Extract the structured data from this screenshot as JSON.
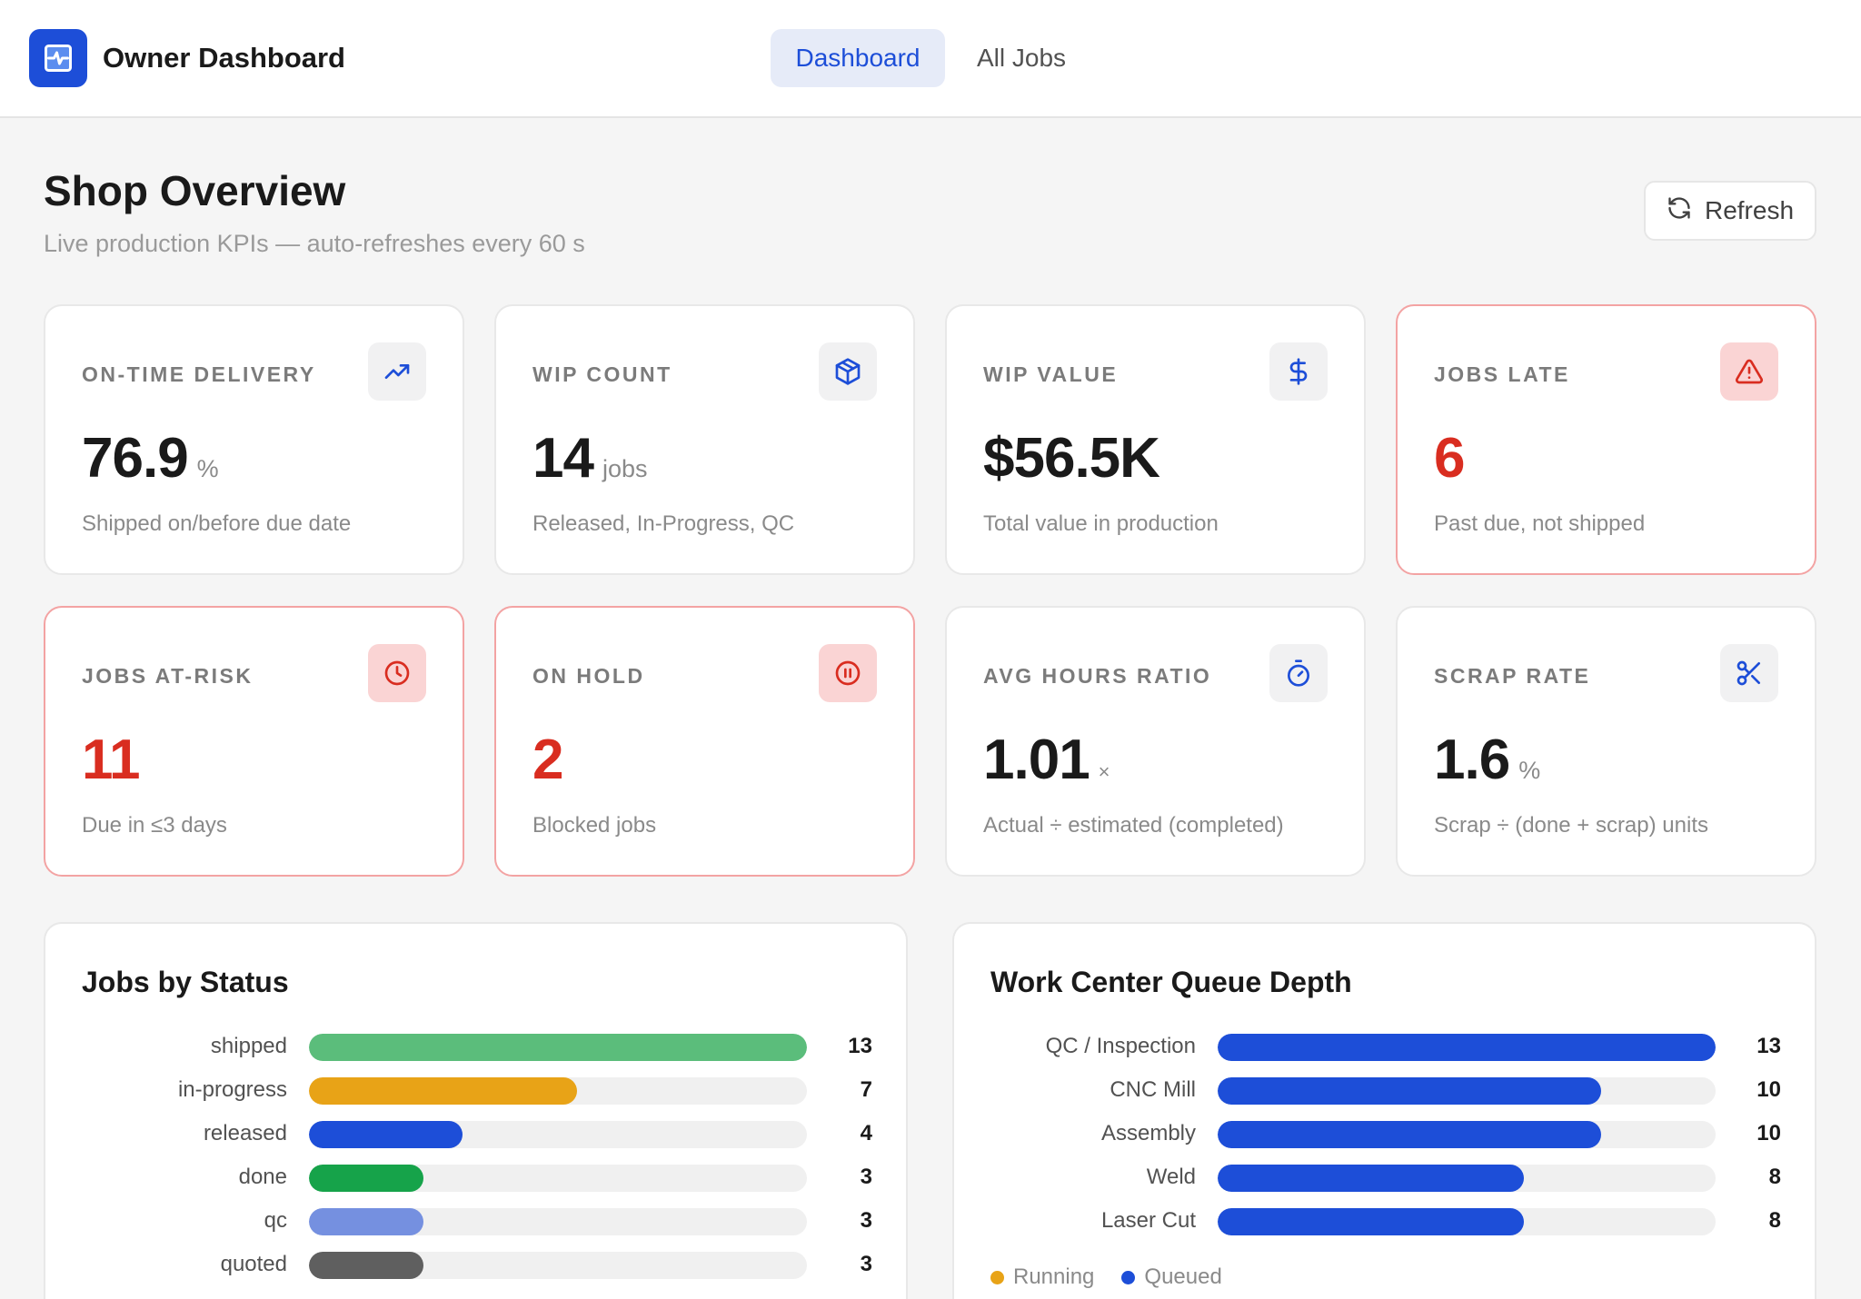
{
  "header": {
    "app_title": "Owner Dashboard",
    "tabs": [
      {
        "label": "Dashboard",
        "active": true
      },
      {
        "label": "All Jobs",
        "active": false
      }
    ]
  },
  "page": {
    "title": "Shop Overview",
    "subtitle": "Live production KPIs — auto-refreshes every 60 s",
    "refresh_label": "Refresh"
  },
  "kpis": [
    {
      "label": "ON-TIME DELIVERY",
      "value": "76.9",
      "unit": "%",
      "desc": "Shipped on/before due date",
      "icon": "trending-up-icon",
      "alert": false
    },
    {
      "label": "WIP COUNT",
      "value": "14",
      "unit": "jobs",
      "desc": "Released, In-Progress, QC",
      "icon": "package-icon",
      "alert": false
    },
    {
      "label": "WIP VALUE",
      "value": "$56.5K",
      "unit": "",
      "desc": "Total value in production",
      "icon": "dollar-icon",
      "alert": false
    },
    {
      "label": "JOBS LATE",
      "value": "6",
      "unit": "",
      "desc": "Past due, not shipped",
      "icon": "warning-icon",
      "alert": true
    },
    {
      "label": "JOBS AT-RISK",
      "value": "11",
      "unit": "",
      "desc": "Due in ≤3 days",
      "icon": "clock-icon",
      "alert": true
    },
    {
      "label": "ON HOLD",
      "value": "2",
      "unit": "",
      "desc": "Blocked jobs",
      "icon": "pause-icon",
      "alert": true
    },
    {
      "label": "AVG HOURS RATIO",
      "value": "1.01",
      "unit": "×",
      "desc": "Actual ÷ estimated (completed)",
      "icon": "stopwatch-icon",
      "alert": false
    },
    {
      "label": "SCRAP RATE",
      "value": "1.6",
      "unit": "%",
      "desc": "Scrap ÷ (done + scrap) units",
      "icon": "scissors-icon",
      "alert": false
    }
  ],
  "colors": {
    "accent": "#1d4ed8",
    "alert": "#d92d20",
    "running": "#e8a317",
    "queued": "#1d4ed8"
  },
  "jobs_by_status": {
    "title": "Jobs by Status",
    "chart_data": {
      "type": "bar",
      "orientation": "horizontal",
      "categories": [
        "shipped",
        "in-progress",
        "released",
        "done",
        "qc",
        "quoted"
      ],
      "values": [
        13,
        7,
        4,
        3,
        3,
        3
      ],
      "colors": [
        "#5bbd7b",
        "#e8a317",
        "#1d4ed8",
        "#16a34a",
        "#7590e0",
        "#5f5f5f"
      ],
      "xlim": [
        0,
        13
      ]
    }
  },
  "work_center_queue": {
    "title": "Work Center Queue Depth",
    "chart_data": {
      "type": "bar",
      "orientation": "horizontal",
      "categories": [
        "QC / Inspection",
        "CNC Mill",
        "Assembly",
        "Weld",
        "Laser Cut"
      ],
      "series": [
        {
          "name": "Running",
          "values": [
            0,
            0,
            0,
            0,
            0
          ],
          "color": "#e8a317"
        },
        {
          "name": "Queued",
          "values": [
            13,
            10,
            10,
            8,
            8
          ],
          "color": "#1d4ed8"
        }
      ],
      "totals": [
        13,
        10,
        10,
        8,
        8
      ],
      "xlim": [
        0,
        13
      ],
      "legend": "bottom-left"
    }
  }
}
